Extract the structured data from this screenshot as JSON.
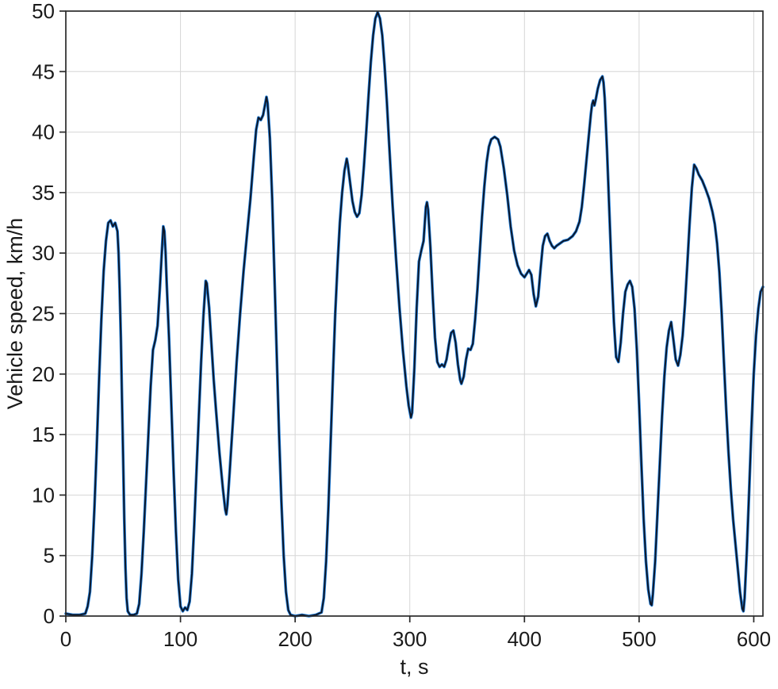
{
  "chart_data": {
    "type": "line",
    "title": "",
    "xlabel": "t, s",
    "ylabel": "Vehicle speed, km/h",
    "xlim": [
      0,
      608
    ],
    "ylim": [
      0,
      50
    ],
    "xticks": [
      0,
      100,
      200,
      300,
      400,
      500,
      600
    ],
    "yticks": [
      0,
      5,
      10,
      15,
      20,
      25,
      30,
      35,
      40,
      45,
      50
    ],
    "grid": true,
    "legend_position": "none",
    "colors": {
      "background": "#ffffff",
      "grid": "#d6d6d6",
      "frame": "#2a2a2a",
      "text": "#1a1a1a"
    },
    "series_styles": [
      {
        "name": "blue-underlay-line",
        "color": "#1e7bd7",
        "width": 3.6
      },
      {
        "name": "dark-overlay-line",
        "color": "#0e1626",
        "width": 1.9
      }
    ],
    "points": [
      [
        0,
        0.2
      ],
      [
        6,
        0.1
      ],
      [
        12,
        0.1
      ],
      [
        17,
        0.2
      ],
      [
        19,
        0.8
      ],
      [
        21,
        2
      ],
      [
        23,
        5
      ],
      [
        25,
        9
      ],
      [
        27,
        14
      ],
      [
        29,
        19.5
      ],
      [
        31,
        24.5
      ],
      [
        33,
        28.5
      ],
      [
        35,
        31
      ],
      [
        37,
        32.5
      ],
      [
        39,
        32.7
      ],
      [
        41,
        32.2
      ],
      [
        43,
        32.5
      ],
      [
        45,
        31.8
      ],
      [
        46,
        30
      ],
      [
        47,
        27
      ],
      [
        48,
        23
      ],
      [
        49,
        18
      ],
      [
        50,
        13
      ],
      [
        51,
        8
      ],
      [
        52,
        4
      ],
      [
        53,
        1.5
      ],
      [
        54,
        0.4
      ],
      [
        56,
        0.1
      ],
      [
        59,
        0.1
      ],
      [
        62,
        0.2
      ],
      [
        64,
        1
      ],
      [
        66,
        3.5
      ],
      [
        68,
        7
      ],
      [
        70,
        11
      ],
      [
        72,
        15
      ],
      [
        74,
        19
      ],
      [
        76,
        22
      ],
      [
        78,
        22.8
      ],
      [
        80,
        24
      ],
      [
        82,
        27
      ],
      [
        84,
        30.5
      ],
      [
        85,
        32.2
      ],
      [
        86,
        31.8
      ],
      [
        87,
        30
      ],
      [
        88,
        27.5
      ],
      [
        90,
        23
      ],
      [
        92,
        17.5
      ],
      [
        94,
        12
      ],
      [
        96,
        7
      ],
      [
        98,
        3
      ],
      [
        100,
        0.8
      ],
      [
        102,
        0.4
      ],
      [
        104,
        0.7
      ],
      [
        106,
        0.5
      ],
      [
        108,
        1.2
      ],
      [
        110,
        3.5
      ],
      [
        112,
        7.5
      ],
      [
        114,
        12
      ],
      [
        116,
        16.5
      ],
      [
        118,
        21
      ],
      [
        120,
        24.8
      ],
      [
        122,
        27.7
      ],
      [
        123,
        27.5
      ],
      [
        125,
        25.5
      ],
      [
        127,
        22.5
      ],
      [
        129,
        19.5
      ],
      [
        131,
        17
      ],
      [
        134,
        13.5
      ],
      [
        137,
        10.5
      ],
      [
        139,
        8.8
      ],
      [
        140,
        8.4
      ],
      [
        141,
        9.2
      ],
      [
        143,
        12
      ],
      [
        146,
        16.5
      ],
      [
        149,
        21
      ],
      [
        152,
        25
      ],
      [
        155,
        28.5
      ],
      [
        158,
        31.5
      ],
      [
        161,
        34.5
      ],
      [
        164,
        38
      ],
      [
        166,
        40.2
      ],
      [
        168,
        41.2
      ],
      [
        170,
        41
      ],
      [
        172,
        41.4
      ],
      [
        174,
        42.4
      ],
      [
        175,
        42.9
      ],
      [
        176,
        42.4
      ],
      [
        178,
        39.5
      ],
      [
        180,
        34.5
      ],
      [
        182,
        28
      ],
      [
        184,
        21.5
      ],
      [
        186,
        15
      ],
      [
        188,
        9.5
      ],
      [
        190,
        5
      ],
      [
        192,
        2
      ],
      [
        194,
        0.5
      ],
      [
        196,
        0.1
      ],
      [
        200,
        0
      ],
      [
        206,
        0.1
      ],
      [
        212,
        0
      ],
      [
        218,
        0.1
      ],
      [
        223,
        0.3
      ],
      [
        225,
        1.5
      ],
      [
        227,
        4.5
      ],
      [
        229,
        9
      ],
      [
        231,
        14.5
      ],
      [
        233,
        20
      ],
      [
        235,
        25
      ],
      [
        237,
        29
      ],
      [
        239,
        32.5
      ],
      [
        241,
        35
      ],
      [
        243,
        36.8
      ],
      [
        245,
        37.8
      ],
      [
        246,
        37.3
      ],
      [
        248,
        35.8
      ],
      [
        250,
        34.3
      ],
      [
        252,
        33.4
      ],
      [
        254,
        33
      ],
      [
        256,
        33.3
      ],
      [
        258,
        34.8
      ],
      [
        260,
        37.2
      ],
      [
        262,
        40
      ],
      [
        264,
        43
      ],
      [
        266,
        45.8
      ],
      [
        268,
        48
      ],
      [
        270,
        49.4
      ],
      [
        272,
        49.9
      ],
      [
        274,
        49.4
      ],
      [
        276,
        48
      ],
      [
        278,
        45.5
      ],
      [
        280,
        42.5
      ],
      [
        282,
        39
      ],
      [
        285,
        34
      ],
      [
        288,
        29.5
      ],
      [
        291,
        25.5
      ],
      [
        294,
        22
      ],
      [
        297,
        19
      ],
      [
        299,
        17.4
      ],
      [
        301,
        16.4
      ],
      [
        302,
        16.8
      ],
      [
        304,
        20.5
      ],
      [
        306,
        25.5
      ],
      [
        308,
        29.3
      ],
      [
        310,
        30.2
      ],
      [
        312,
        31
      ],
      [
        314,
        33.8
      ],
      [
        315,
        34.2
      ],
      [
        316,
        33.6
      ],
      [
        318,
        30.5
      ],
      [
        320,
        26.5
      ],
      [
        322,
        23
      ],
      [
        324,
        21
      ],
      [
        326,
        20.6
      ],
      [
        328,
        20.8
      ],
      [
        330,
        20.6
      ],
      [
        332,
        21.2
      ],
      [
        334,
        22.4
      ],
      [
        336,
        23.4
      ],
      [
        338,
        23.6
      ],
      [
        340,
        22.6
      ],
      [
        342,
        20.8
      ],
      [
        344,
        19.5
      ],
      [
        345,
        19.2
      ],
      [
        347,
        19.8
      ],
      [
        349,
        21.2
      ],
      [
        351,
        22.1
      ],
      [
        353,
        22
      ],
      [
        355,
        22.5
      ],
      [
        357,
        24.5
      ],
      [
        359,
        27
      ],
      [
        361,
        30
      ],
      [
        363,
        33
      ],
      [
        365,
        35.5
      ],
      [
        367,
        37.5
      ],
      [
        369,
        38.8
      ],
      [
        371,
        39.4
      ],
      [
        374,
        39.6
      ],
      [
        377,
        39.4
      ],
      [
        379,
        38.8
      ],
      [
        382,
        37
      ],
      [
        385,
        34.8
      ],
      [
        388,
        32.2
      ],
      [
        391,
        30.2
      ],
      [
        394,
        29
      ],
      [
        397,
        28.3
      ],
      [
        400,
        28
      ],
      [
        402,
        28.3
      ],
      [
        404,
        28.6
      ],
      [
        406,
        28.2
      ],
      [
        408,
        26.6
      ],
      [
        410,
        25.6
      ],
      [
        412,
        26.4
      ],
      [
        414,
        28.6
      ],
      [
        416,
        30.6
      ],
      [
        418,
        31.4
      ],
      [
        420,
        31.6
      ],
      [
        422,
        31
      ],
      [
        424,
        30.6
      ],
      [
        426,
        30.4
      ],
      [
        428,
        30.6
      ],
      [
        431,
        30.8
      ],
      [
        434,
        31
      ],
      [
        438,
        31.1
      ],
      [
        442,
        31.4
      ],
      [
        445,
        31.8
      ],
      [
        448,
        32.6
      ],
      [
        450,
        33.8
      ],
      [
        452,
        35.6
      ],
      [
        454,
        37.6
      ],
      [
        456,
        39.6
      ],
      [
        458,
        41.5
      ],
      [
        459,
        42.3
      ],
      [
        460,
        42.6
      ],
      [
        461,
        42.2
      ],
      [
        462,
        42.6
      ],
      [
        464,
        43.6
      ],
      [
        466,
        44.3
      ],
      [
        468,
        44.6
      ],
      [
        469,
        44.1
      ],
      [
        470,
        42.8
      ],
      [
        472,
        38.5
      ],
      [
        474,
        33.5
      ],
      [
        476,
        28.5
      ],
      [
        478,
        24.3
      ],
      [
        480,
        21.4
      ],
      [
        482,
        21
      ],
      [
        484,
        22.6
      ],
      [
        486,
        25
      ],
      [
        488,
        26.8
      ],
      [
        490,
        27.4
      ],
      [
        492,
        27.7
      ],
      [
        494,
        27.2
      ],
      [
        496,
        25.4
      ],
      [
        498,
        22
      ],
      [
        500,
        17.5
      ],
      [
        502,
        12.5
      ],
      [
        504,
        8
      ],
      [
        506,
        4.5
      ],
      [
        508,
        2.2
      ],
      [
        510,
        1
      ],
      [
        511,
        0.9
      ],
      [
        512,
        1.8
      ],
      [
        514,
        4.5
      ],
      [
        516,
        8.5
      ],
      [
        518,
        12.5
      ],
      [
        520,
        16.5
      ],
      [
        522,
        19.8
      ],
      [
        524,
        22.2
      ],
      [
        526,
        23.6
      ],
      [
        528,
        24.3
      ],
      [
        530,
        22.8
      ],
      [
        532,
        21.2
      ],
      [
        534,
        20.7
      ],
      [
        536,
        21.6
      ],
      [
        538,
        23.2
      ],
      [
        540,
        25.8
      ],
      [
        542,
        29
      ],
      [
        544,
        32.4
      ],
      [
        546,
        35.4
      ],
      [
        548,
        37.3
      ],
      [
        550,
        37
      ],
      [
        552,
        36.5
      ],
      [
        555,
        36
      ],
      [
        558,
        35.3
      ],
      [
        561,
        34.5
      ],
      [
        564,
        33.4
      ],
      [
        566,
        32.4
      ],
      [
        568,
        30.8
      ],
      [
        570,
        28.4
      ],
      [
        572,
        25
      ],
      [
        574,
        21
      ],
      [
        576,
        17
      ],
      [
        578,
        13.5
      ],
      [
        580,
        10.5
      ],
      [
        582,
        8
      ],
      [
        584,
        6
      ],
      [
        586,
        4
      ],
      [
        588,
        2
      ],
      [
        590,
        0.6
      ],
      [
        591,
        0.4
      ],
      [
        592,
        1.5
      ],
      [
        594,
        5.5
      ],
      [
        596,
        10.5
      ],
      [
        598,
        15.5
      ],
      [
        600,
        20
      ],
      [
        602,
        23.2
      ],
      [
        604,
        25.4
      ],
      [
        606,
        26.8
      ],
      [
        608,
        27.2
      ]
    ]
  }
}
